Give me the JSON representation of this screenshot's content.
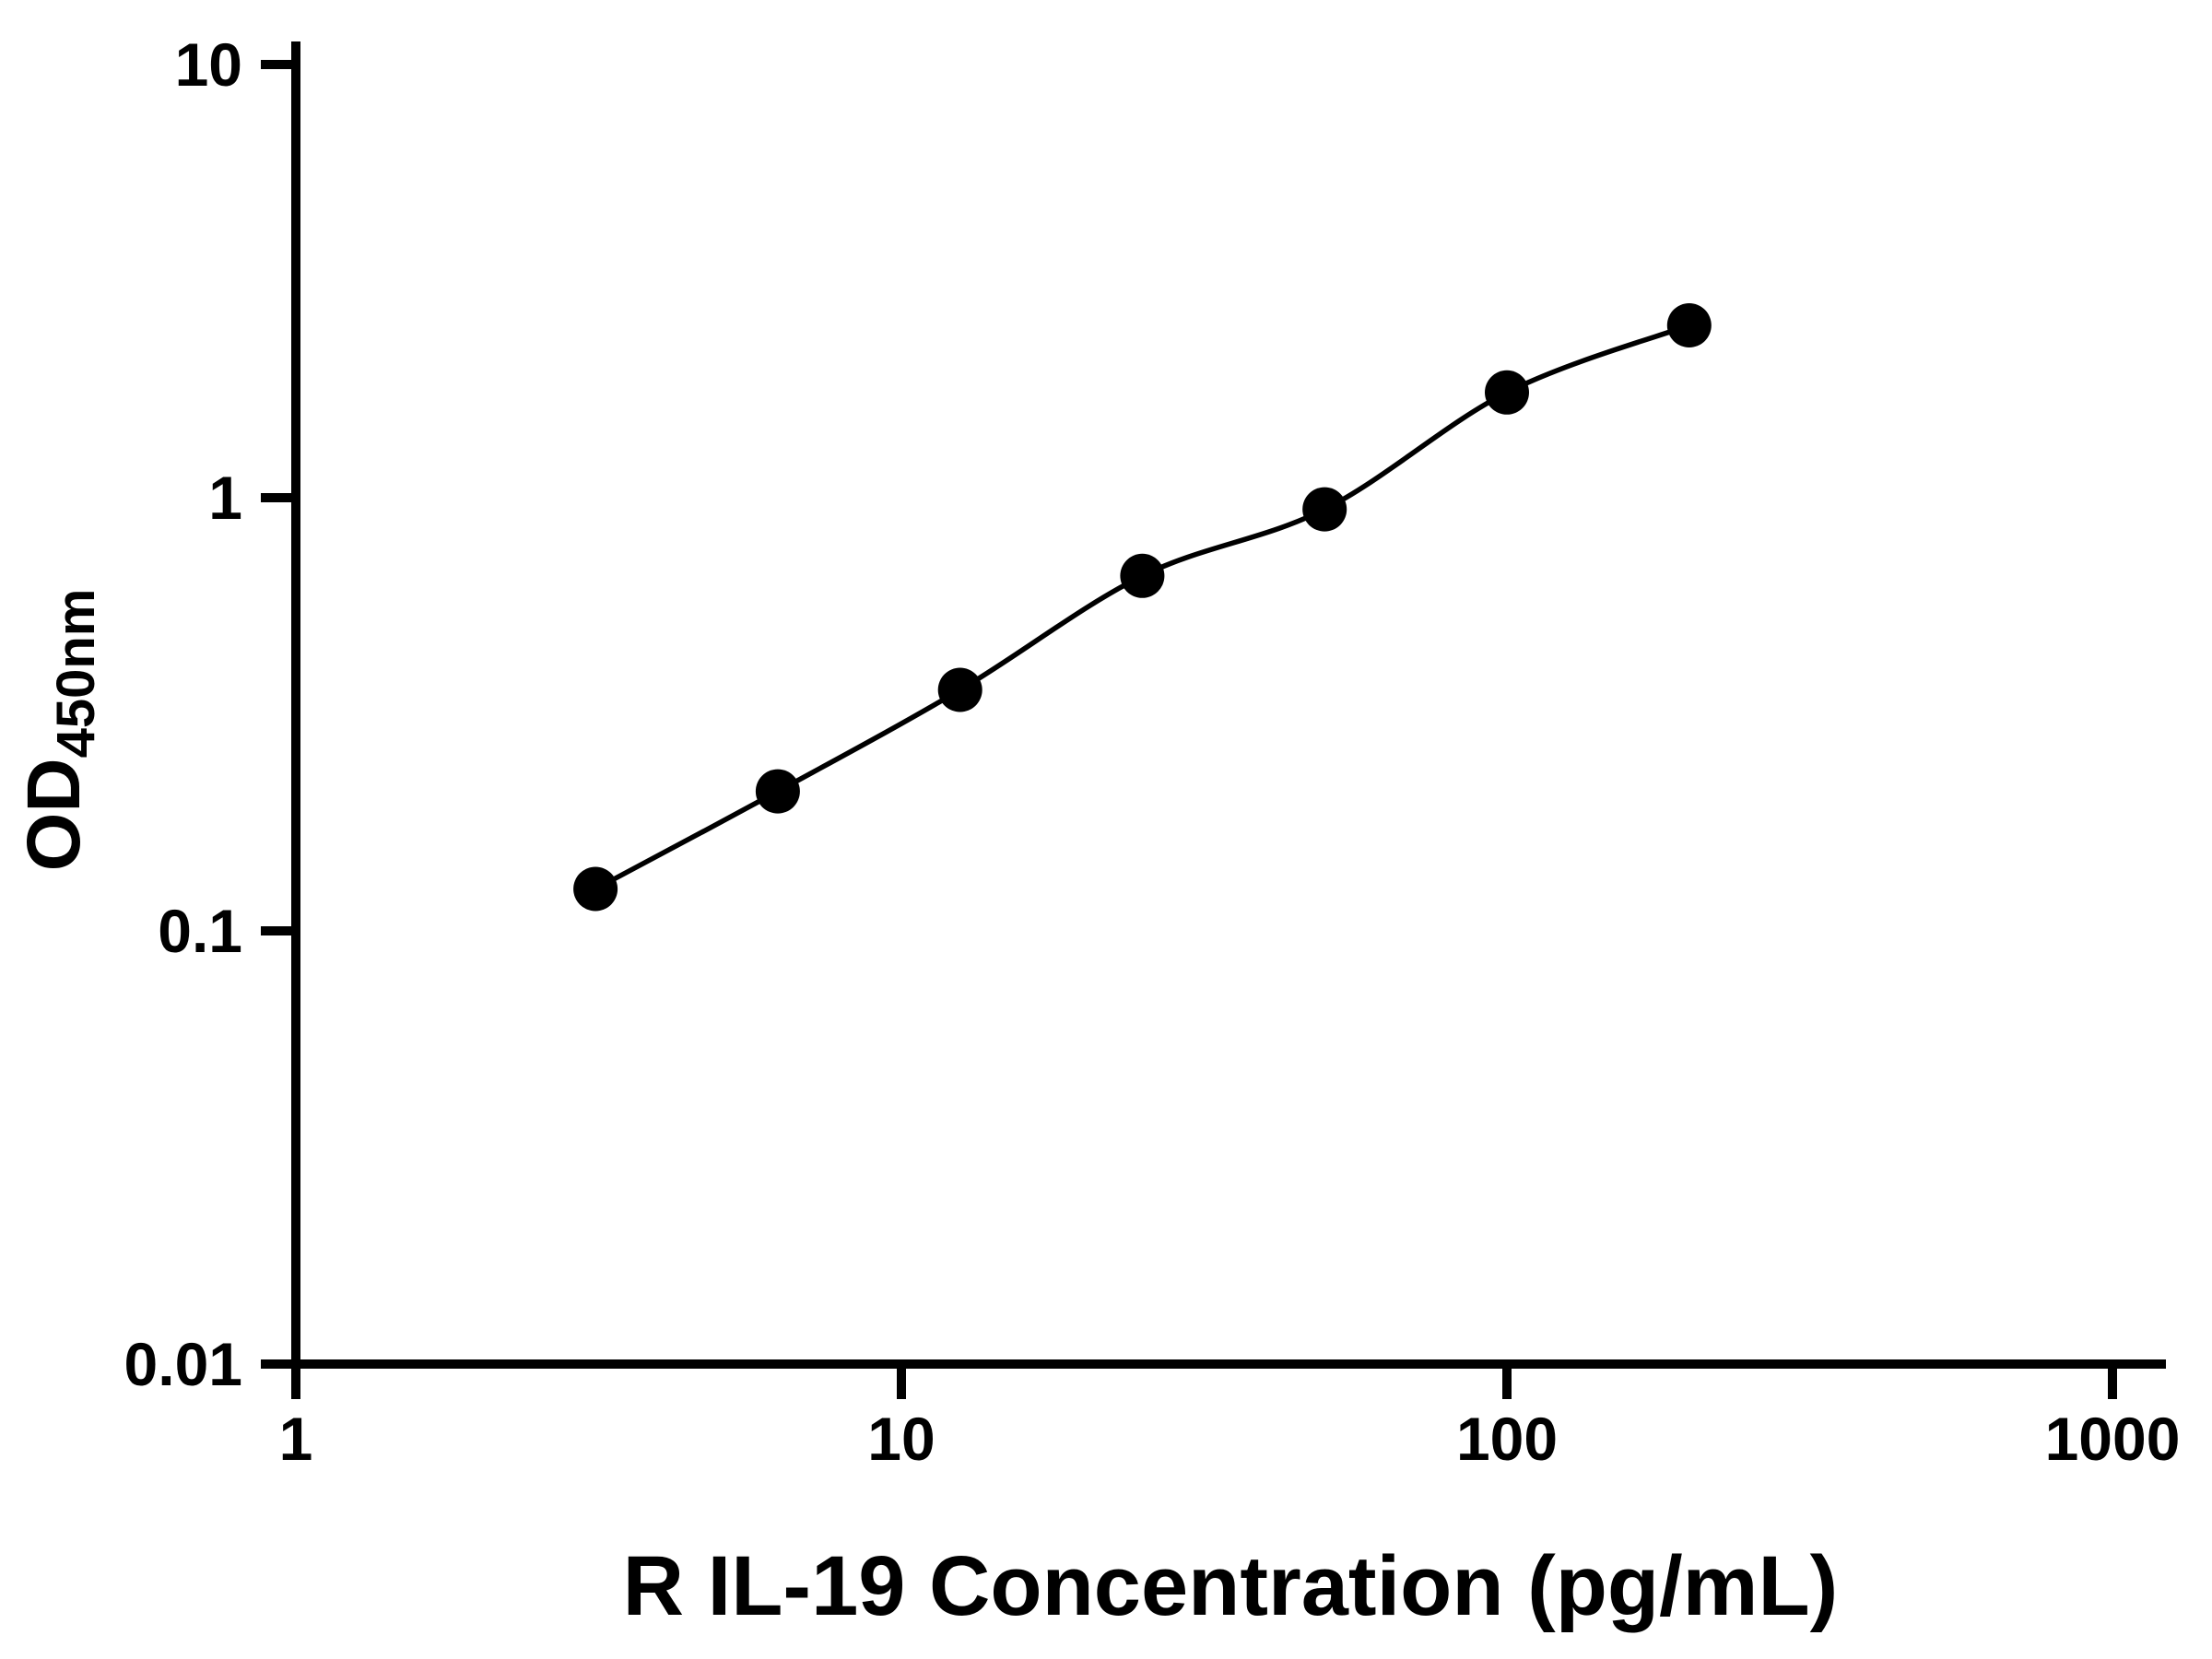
{
  "figure": {
    "background": "#ffffff"
  },
  "chart_data": {
    "type": "scatter",
    "subtype": "standard-curve-with-fit-line",
    "title": "",
    "xlabel": "R IL-19 Concentration (pg/mL)",
    "ylabel_main": "OD",
    "ylabel_sub": "450nm",
    "xscale": "log",
    "yscale": "log",
    "xlim": [
      1,
      1000
    ],
    "ylim": [
      0.01,
      10
    ],
    "xticks": [
      1,
      10,
      100,
      1000
    ],
    "xtick_labels": [
      "1",
      "10",
      "100",
      "1000"
    ],
    "yticks": [
      0.01,
      0.1,
      1,
      10
    ],
    "ytick_labels": [
      "0.01",
      "0.1",
      "1",
      "10"
    ],
    "grid": false,
    "legend": null,
    "x": [
      3.125,
      6.25,
      12.5,
      25,
      50,
      100,
      200
    ],
    "y": [
      0.125,
      0.21,
      0.36,
      0.66,
      0.94,
      1.75,
      2.5
    ],
    "marker": "circle",
    "marker_color": "#000000",
    "line_color": "#000000",
    "axis_color": "#000000",
    "background": "#ffffff"
  }
}
